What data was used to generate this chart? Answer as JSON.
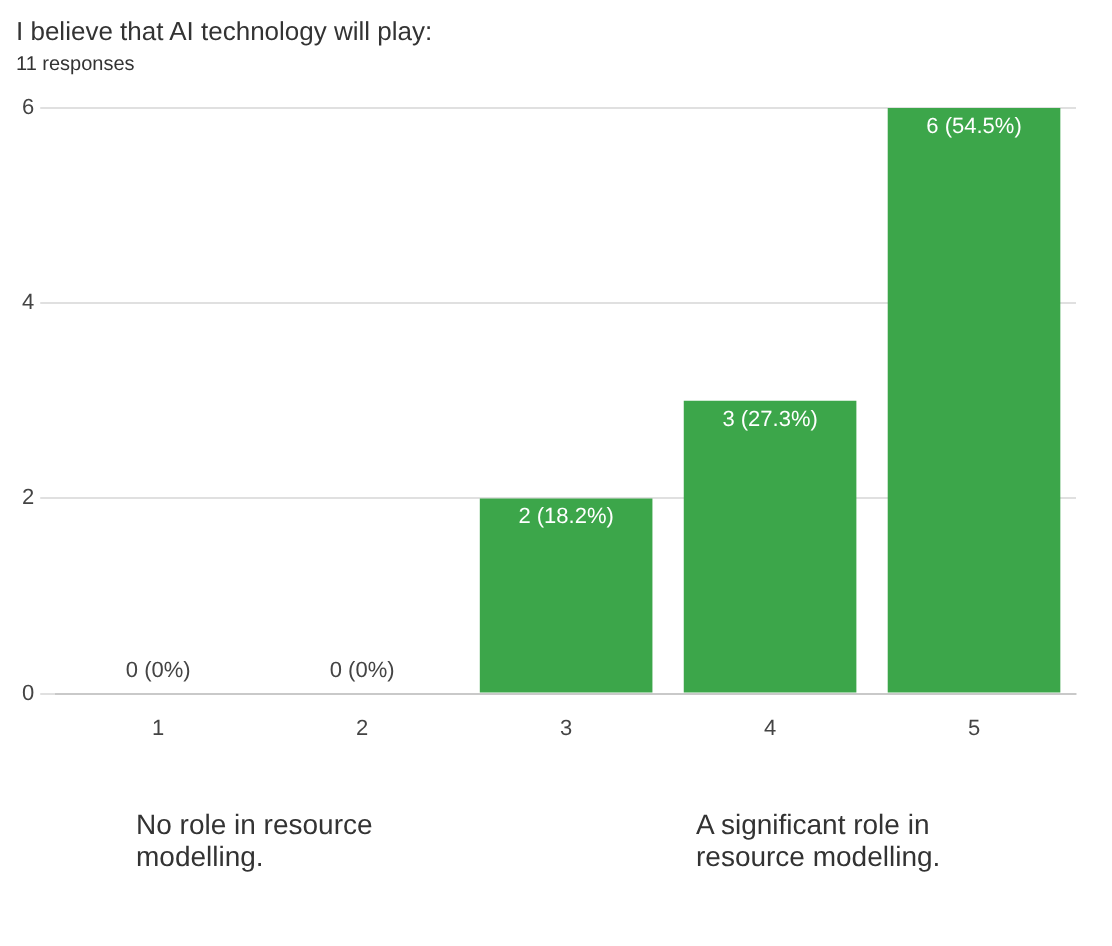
{
  "chart_data": {
    "type": "bar",
    "title": "I believe that AI technology will play:",
    "subtitle": "11 responses",
    "categories": [
      "1",
      "2",
      "3",
      "4",
      "5"
    ],
    "values": [
      0,
      0,
      2,
      3,
      6
    ],
    "value_labels": [
      "0 (0%)",
      "0 (0%)",
      "2 (18.2%)",
      "3 (27.3%)",
      "6 (54.5%)"
    ],
    "color": "#3ca64a",
    "ylim": [
      0,
      6
    ],
    "yticks": [
      0,
      2,
      4,
      6
    ],
    "grid": "y",
    "legend": false,
    "annotations": [
      "No role in resource modelling.",
      "A significant role in resource modelling."
    ]
  }
}
